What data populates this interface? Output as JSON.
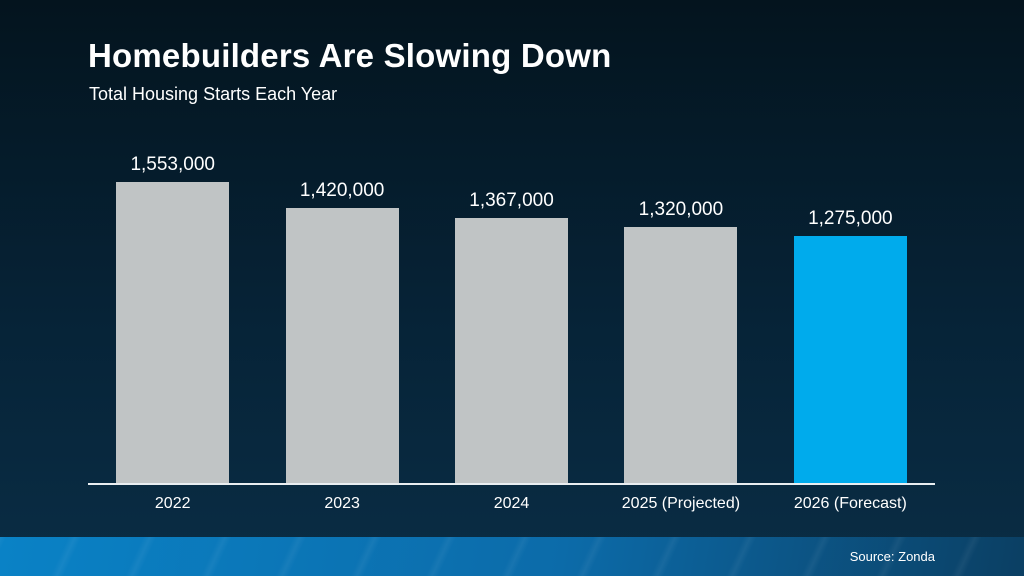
{
  "page": {
    "title": "Homebuilders Are Slowing Down",
    "subtitle": "Total Housing Starts Each Year",
    "source": "Source: Zonda"
  },
  "colors": {
    "background_top": "#04141e",
    "background_mid": "#062337",
    "background_bottom": "#0a2d45",
    "bar_default": "#c0c4c5",
    "bar_highlight": "#00abec",
    "axis_line": "#e9eef1",
    "text": "#ffffff",
    "footer_gradient_left": "#0a82c6",
    "footer_gradient_mid": "#0c6ba9",
    "footer_gradient_right": "#0b3f63"
  },
  "chart_data": {
    "type": "bar",
    "title": "Homebuilders Are Slowing Down",
    "subtitle": "Total Housing Starts Each Year",
    "categories": [
      "2022",
      "2023",
      "2024",
      "2025 (Projected)",
      "2026 (Forecast)"
    ],
    "values": [
      1553000,
      1420000,
      1367000,
      1320000,
      1275000
    ],
    "value_labels": [
      "1,553,000",
      "1,420,000",
      "1,367,000",
      "1,320,000",
      "1,275,000"
    ],
    "highlight_index": 4,
    "xlabel": "",
    "ylabel": "",
    "ylim": [
      0,
      1553000
    ],
    "grid": false,
    "legend": false,
    "data_labels_position": "above-bars",
    "source": "Source: Zonda"
  }
}
